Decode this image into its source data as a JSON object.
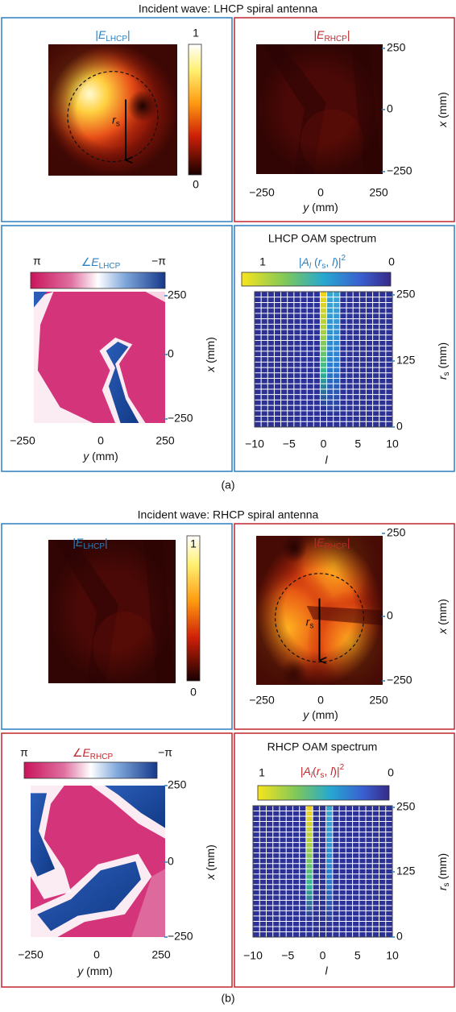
{
  "parts": [
    {
      "title": "Incident wave: LHCP spiral antenna",
      "caption": "(a)",
      "lhcp_magnitude": {
        "label": [
          "|",
          "E",
          "LHCP",
          "|"
        ],
        "colorbar": [
          "1",
          "0"
        ]
      },
      "rhcp_magnitude": {
        "label": [
          "|",
          "E",
          "RHCP",
          "|"
        ],
        "x_ticks": [
          "250",
          "0",
          "−250"
        ],
        "x_label": [
          "x",
          " (mm)"
        ],
        "y_ticks": [
          "−250",
          "0",
          "250"
        ],
        "y_label": [
          "y",
          " (mm)"
        ]
      },
      "radius_label": [
        "r",
        "s"
      ],
      "phase": {
        "label": [
          "∠",
          "E",
          "LHCP"
        ],
        "colorbar": [
          "π",
          "−π"
        ],
        "x_ticks": [
          "250",
          "0",
          "−250"
        ],
        "x_label": [
          "x",
          " (mm)"
        ],
        "y_ticks": [
          "−250",
          "0",
          "250"
        ],
        "y_label": [
          "y",
          " (mm)"
        ]
      },
      "spectrum": {
        "title": "LHCP OAM spectrum",
        "label": [
          "|",
          "A",
          "l",
          " (",
          "r",
          "s",
          ", ",
          "l",
          ")|",
          "2"
        ],
        "colorbar": [
          "1",
          "0"
        ],
        "r_ticks": [
          "250",
          "125",
          "0"
        ],
        "r_label": [
          "r",
          "s",
          " (mm)"
        ],
        "l_ticks": [
          "−10",
          "−5",
          "0",
          "5",
          "10"
        ],
        "l_label": "l"
      }
    },
    {
      "title": "Incident wave: RHCP spiral antenna",
      "caption": "(b)",
      "lhcp_magnitude": {
        "label": [
          "|",
          "E",
          "LHCP",
          "|"
        ],
        "colorbar": [
          "1",
          "0"
        ]
      },
      "rhcp_magnitude": {
        "label": [
          "|",
          "E",
          "RHCP",
          "|"
        ],
        "x_ticks": [
          "250",
          "0",
          "−250"
        ],
        "x_label": [
          "x",
          " (mm)"
        ],
        "y_ticks": [
          "−250",
          "0",
          "250"
        ],
        "y_label": [
          "y",
          " (mm)"
        ]
      },
      "radius_label": [
        "r",
        "s"
      ],
      "phase": {
        "label": [
          "∠",
          "E",
          "RHCP"
        ],
        "colorbar": [
          "π",
          "−π"
        ],
        "x_ticks": [
          "250",
          "0",
          "−250"
        ],
        "x_label": [
          "x",
          " (mm)"
        ],
        "y_ticks": [
          "−250",
          "0",
          "250"
        ],
        "y_label": [
          "y",
          " (mm)"
        ]
      },
      "spectrum": {
        "title": "RHCP OAM spectrum",
        "label": [
          "|",
          "A",
          "l",
          "(",
          "r",
          "s",
          ", ",
          "l",
          ")|",
          "2"
        ],
        "colorbar": [
          "1",
          "0"
        ],
        "r_ticks": [
          "250",
          "125",
          "0"
        ],
        "r_label": [
          "r",
          "s",
          " (mm)"
        ],
        "l_ticks": [
          "−10",
          "−5",
          "0",
          "5",
          "10"
        ],
        "l_label": "l"
      }
    }
  ]
}
